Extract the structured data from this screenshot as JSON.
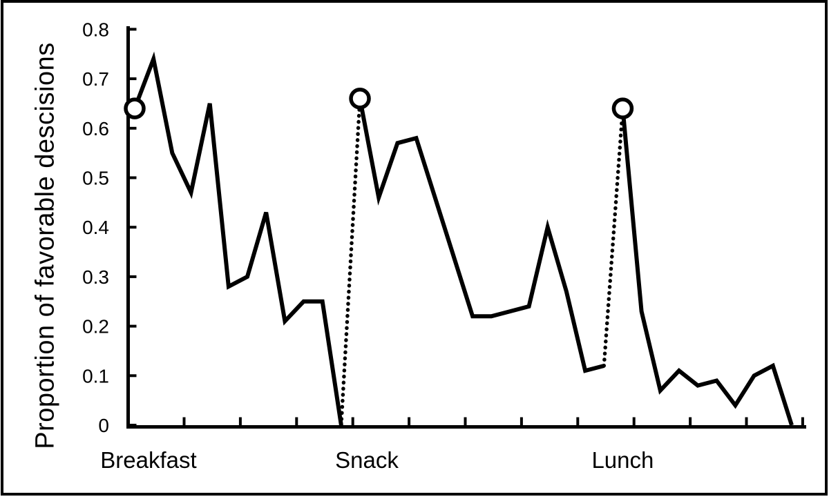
{
  "chart_data": {
    "type": "line",
    "title": "",
    "xlabel": "",
    "ylabel": "Proportion of favorable descisions",
    "ylim": [
      0,
      0.8
    ],
    "yticks": [
      0,
      0.1,
      0.2,
      0.3,
      0.4,
      0.5,
      0.6,
      0.7,
      0.8
    ],
    "ytick_labels": [
      "0",
      "0.1",
      "0.2",
      "0.3",
      "0.4",
      "0.5",
      "0.6",
      "0.7",
      "0.8"
    ],
    "x_axis_tick_count": 12,
    "grid": "off",
    "legend": "none",
    "line_color": "#000000",
    "background_color": "#ffffff",
    "session_start_marker": "open-circle",
    "session_break_style": "dotted-connector",
    "sessions": [
      {
        "label": "Breakfast",
        "start_case": 0,
        "values": [
          0.64,
          0.74,
          0.55,
          0.47,
          0.65,
          0.28,
          0.3,
          0.43,
          0.21,
          0.25,
          0.25,
          0.0
        ]
      },
      {
        "label": "Snack",
        "start_case": 12,
        "values": [
          0.66,
          0.46,
          0.57,
          0.58,
          0.46,
          0.34,
          0.22,
          0.22,
          0.23,
          0.24,
          0.4,
          0.27,
          0.11,
          0.12
        ]
      },
      {
        "label": "Lunch",
        "start_case": 26,
        "values": [
          0.64,
          0.23,
          0.07,
          0.11,
          0.08,
          0.09,
          0.04,
          0.1,
          0.12,
          0.0
        ]
      }
    ]
  }
}
